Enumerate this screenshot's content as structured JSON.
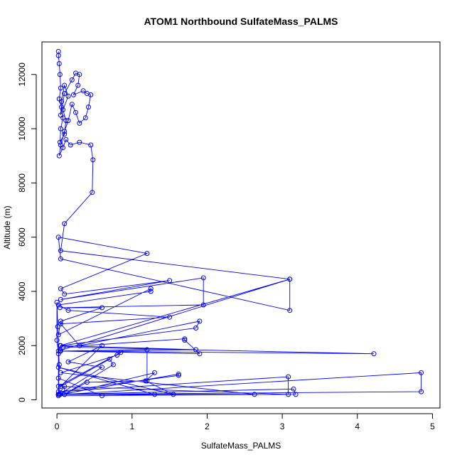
{
  "chart_data": {
    "type": "scatter",
    "title": "ATOM1 Northbound SulfateMass_PALMS",
    "xlabel": "SulfateMass_PALMS",
    "ylabel": "Altitude (m)",
    "xlim": [
      -0.2,
      5.1
    ],
    "ylim": [
      -300,
      13200
    ],
    "x_ticks": [
      0,
      1,
      2,
      3,
      4,
      5
    ],
    "y_ticks": [
      0,
      2000,
      4000,
      6000,
      8000,
      10000,
      12000
    ],
    "grid": false,
    "legend": "none",
    "color": "#0000ff",
    "series": [
      {
        "x": [
          0.02,
          0.02,
          0.03,
          0.04,
          0.05,
          0.03,
          0.06,
          0.08,
          0.05,
          0.04,
          0.1,
          0.12,
          0.08,
          0.15,
          0.1,
          0.06,
          0.05,
          0.1,
          0.2,
          0.25,
          0.3,
          0.28,
          0.22,
          0.35,
          0.4,
          0.45,
          0.42,
          0.38,
          0.3,
          0.25,
          0.2,
          0.15,
          0.1,
          0.05,
          0.03,
          0.08,
          0.12,
          0.18,
          0.3,
          0.45,
          0.48,
          0.47,
          0.1,
          0.05,
          3.1,
          3.1,
          0.05,
          0.02,
          1.2,
          0.05,
          0.1,
          1.5,
          0.05,
          1.95,
          1.95,
          0.04,
          0.6,
          0.05,
          0.02,
          1.25,
          1.25,
          0.02,
          0.15,
          1.5,
          0.05,
          0.3,
          1.9,
          1.85,
          0.05,
          0.02,
          3.1,
          0.04,
          1.85,
          0.04,
          1.9,
          1.7,
          1.7,
          0.08,
          4.22,
          0.05,
          1.2,
          1.2,
          0.4,
          0.1,
          4.85,
          4.85,
          0.04,
          1.62,
          1.62,
          0.02,
          3.08,
          3.08,
          0.02,
          0.85,
          0.8,
          0.05,
          2.63,
          0.02,
          3.15,
          3.18,
          0.02,
          1.3,
          1.18,
          1.55,
          0.02,
          1.3,
          0.6,
          0.02,
          0.03,
          0.6,
          0.15,
          0.6,
          0.05,
          0.7,
          0.75,
          0.1,
          0.1,
          0.02,
          0.02,
          0.0,
          0.0,
          0.01,
          0.03,
          0.02
        ],
        "y": [
          12850,
          12700,
          12400,
          12000,
          11500,
          11100,
          10800,
          10400,
          10000,
          9500,
          9800,
          10300,
          10700,
          11200,
          11600,
          11000,
          10500,
          11300,
          11800,
          12050,
          12000,
          11600,
          11250,
          11400,
          11300,
          11250,
          10800,
          10400,
          10200,
          10600,
          10900,
          10300,
          9900,
          9400,
          9000,
          9300,
          9600,
          9400,
          9500,
          9400,
          8850,
          7650,
          6500,
          5500,
          4450,
          3300,
          5200,
          6000,
          5400,
          4100,
          3900,
          4400,
          3700,
          4500,
          3500,
          3400,
          3400,
          2900,
          2400,
          4100,
          4000,
          3500,
          3300,
          3050,
          2800,
          2000,
          2900,
          2650,
          2000,
          1800,
          4450,
          2000,
          1850,
          1800,
          1700,
          2200,
          2250,
          1950,
          1700,
          1800,
          1850,
          700,
          650,
          200,
          1000,
          300,
          200,
          950,
          900,
          300,
          850,
          200,
          500,
          1750,
          1650,
          1000,
          200,
          200,
          400,
          200,
          150,
          1000,
          700,
          200,
          1200,
          200,
          150,
          800,
          200,
          1200,
          1400,
          2000,
          500,
          1500,
          1300,
          200,
          500,
          200,
          1700,
          2200,
          3600,
          2700,
          1300,
          200
        ]
      }
    ]
  }
}
